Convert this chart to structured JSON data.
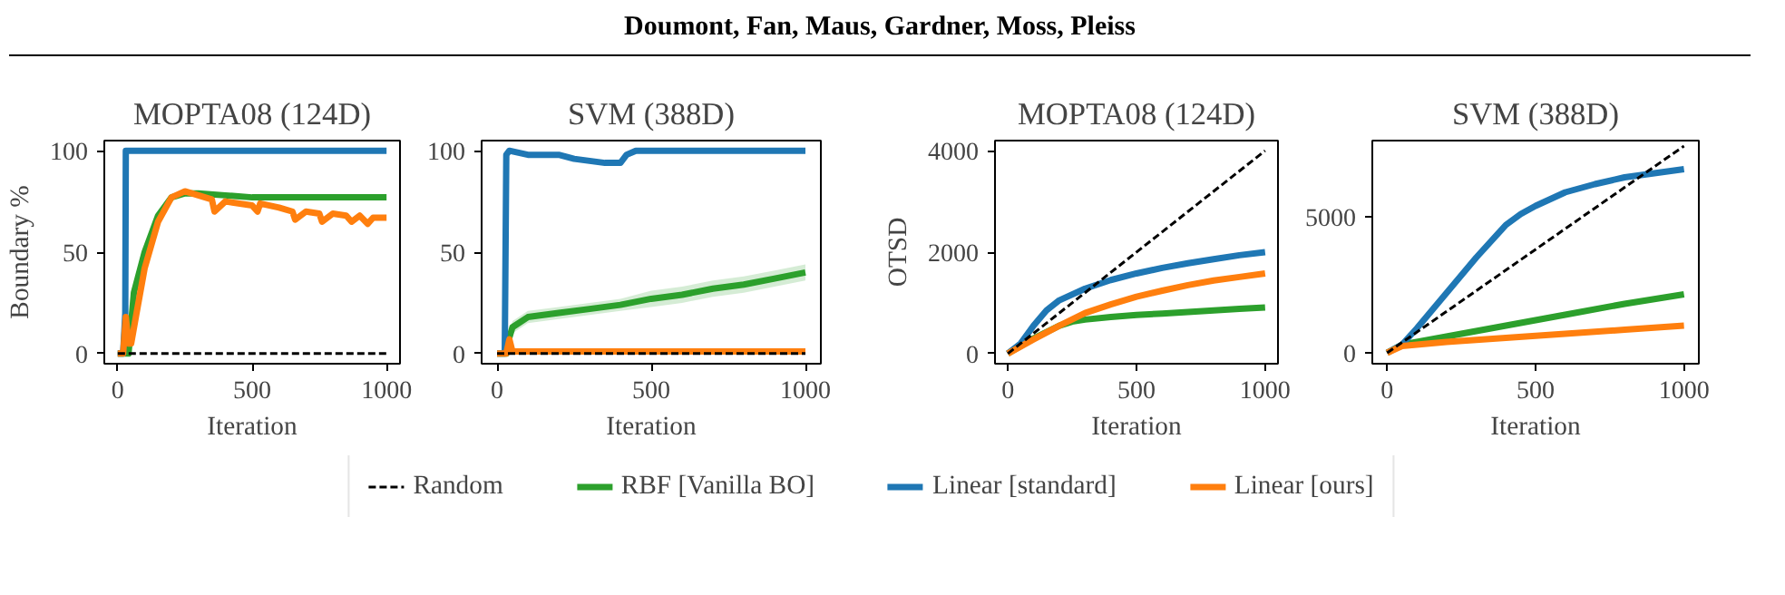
{
  "chart_data": [
    {
      "type": "line",
      "title": "MOPTA08 (124D)",
      "xlabel": "Iteration",
      "ylabel": "Boundary %",
      "annotations": [
        "Doumont, Fan, Maus, Gardner, Moss, Pleiss"
      ],
      "legend": "bottom",
      "grid": false,
      "xlim": [
        -50,
        1050
      ],
      "ylim": [
        -5,
        105
      ],
      "xticks": [
        0,
        500,
        1000
      ],
      "yticks": [
        0,
        50,
        100
      ],
      "series": [
        {
          "name": "Random",
          "color": "#000000",
          "line_style": "dashed",
          "x": [
            0,
            1000
          ],
          "values": [
            0,
            0
          ]
        },
        {
          "name": "RBF [Vanilla BO]",
          "color": "#2ca02c",
          "x": [
            0,
            40,
            60,
            100,
            150,
            200,
            250,
            300,
            400,
            500,
            600,
            700,
            800,
            900,
            1000
          ],
          "values": [
            0,
            0,
            30,
            50,
            68,
            77,
            79,
            79,
            78,
            77,
            77,
            77,
            77,
            77,
            77
          ]
        },
        {
          "name": "Linear [standard]",
          "color": "#1f77b4",
          "x": [
            0,
            20,
            28,
            30,
            1000
          ],
          "values": [
            0,
            0,
            20,
            100,
            100
          ]
        },
        {
          "name": "Linear [ours]",
          "color": "#ff7f0e",
          "x": [
            0,
            20,
            30,
            40,
            50,
            70,
            100,
            150,
            200,
            250,
            300,
            350,
            360,
            400,
            500,
            520,
            530,
            600,
            650,
            660,
            700,
            750,
            760,
            800,
            850,
            870,
            900,
            930,
            950,
            1000
          ],
          "values": [
            0,
            0,
            18,
            5,
            5,
            20,
            42,
            65,
            77,
            80,
            78,
            76,
            70,
            75,
            73,
            70,
            74,
            72,
            70,
            66,
            70,
            69,
            65,
            69,
            68,
            65,
            68,
            64,
            67,
            67
          ]
        }
      ]
    },
    {
      "type": "line",
      "title": "SVM (388D)",
      "xlabel": "Iteration",
      "grid": false,
      "xlim": [
        -50,
        1050
      ],
      "ylim": [
        -5,
        105
      ],
      "xticks": [
        0,
        500,
        1000
      ],
      "yticks": [
        0,
        50,
        100
      ],
      "series": [
        {
          "color": "#000000",
          "line_style": "dashed",
          "x": [
            0,
            1000
          ],
          "values": [
            0,
            0
          ]
        },
        {
          "color": "#2ca02c",
          "x": [
            0,
            30,
            40,
            50,
            100,
            200,
            300,
            400,
            500,
            600,
            700,
            800,
            900,
            1000
          ],
          "values": [
            0,
            0,
            8,
            13,
            18,
            20,
            22,
            24,
            27,
            29,
            32,
            34,
            37,
            40
          ],
          "lower": [
            0,
            0,
            6,
            10,
            15,
            17,
            19,
            21,
            23,
            25,
            28,
            30,
            33,
            36
          ],
          "upper": [
            0,
            0,
            10,
            16,
            21,
            23,
            25,
            27,
            31,
            33,
            36,
            38,
            41,
            44
          ]
        },
        {
          "color": "#1f77b4",
          "x": [
            0,
            25,
            30,
            40,
            100,
            200,
            250,
            300,
            350,
            400,
            420,
            450,
            500,
            1000
          ],
          "values": [
            0,
            0,
            98,
            100,
            98,
            98,
            96,
            95,
            94,
            94,
            98,
            100,
            100,
            100
          ]
        },
        {
          "color": "#ff7f0e",
          "x": [
            0,
            30,
            40,
            50,
            100,
            600,
            1000
          ],
          "values": [
            0,
            0,
            7,
            1,
            1,
            1,
            1
          ]
        }
      ]
    },
    {
      "type": "line",
      "title": "MOPTA08 (124D)",
      "xlabel": "Iteration",
      "ylabel": "OTSD",
      "grid": false,
      "xlim": [
        -50,
        1050
      ],
      "ylim": [
        -200,
        4200
      ],
      "xticks": [
        0,
        500,
        1000
      ],
      "yticks": [
        0,
        2000,
        4000
      ],
      "series": [
        {
          "color": "#000000",
          "line_style": "dashed",
          "x": [
            0,
            1000
          ],
          "values": [
            0,
            4000
          ]
        },
        {
          "color": "#2ca02c",
          "x": [
            0,
            100,
            200,
            250,
            300,
            400,
            500,
            600,
            700,
            800,
            900,
            1000
          ],
          "values": [
            0,
            300,
            550,
            630,
            670,
            720,
            760,
            790,
            820,
            850,
            880,
            910
          ]
        },
        {
          "color": "#1f77b4",
          "x": [
            0,
            50,
            100,
            150,
            200,
            300,
            400,
            500,
            600,
            700,
            800,
            900,
            1000
          ],
          "values": [
            0,
            200,
            550,
            850,
            1050,
            1280,
            1450,
            1580,
            1690,
            1780,
            1860,
            1940,
            2000
          ]
        },
        {
          "color": "#ff7f0e",
          "x": [
            0,
            100,
            200,
            300,
            400,
            500,
            600,
            700,
            800,
            900,
            1000
          ],
          "values": [
            0,
            280,
            550,
            800,
            970,
            1120,
            1240,
            1350,
            1440,
            1510,
            1580
          ]
        }
      ]
    },
    {
      "type": "line",
      "title": "SVM (388D)",
      "xlabel": "Iteration",
      "grid": false,
      "xlim": [
        -50,
        1050
      ],
      "ylim": [
        -400,
        7800
      ],
      "xticks": [
        0,
        500,
        1000
      ],
      "yticks": [
        0,
        5000
      ],
      "series": [
        {
          "color": "#000000",
          "line_style": "dashed",
          "x": [
            0,
            1000
          ],
          "values": [
            0,
            7600
          ]
        },
        {
          "color": "#2ca02c",
          "x": [
            0,
            50,
            200,
            400,
            600,
            800,
            1000
          ],
          "values": [
            0,
            300,
            600,
            1000,
            1400,
            1800,
            2150
          ]
        },
        {
          "color": "#1f77b4",
          "x": [
            0,
            50,
            100,
            200,
            300,
            400,
            450,
            500,
            600,
            700,
            800,
            900,
            1000
          ],
          "values": [
            0,
            300,
            900,
            2200,
            3500,
            4700,
            5100,
            5400,
            5900,
            6200,
            6450,
            6600,
            6750
          ]
        },
        {
          "color": "#ff7f0e",
          "x": [
            0,
            50,
            200,
            400,
            600,
            800,
            1000
          ],
          "values": [
            0,
            250,
            400,
            550,
            700,
            850,
            1000
          ]
        }
      ]
    }
  ]
}
